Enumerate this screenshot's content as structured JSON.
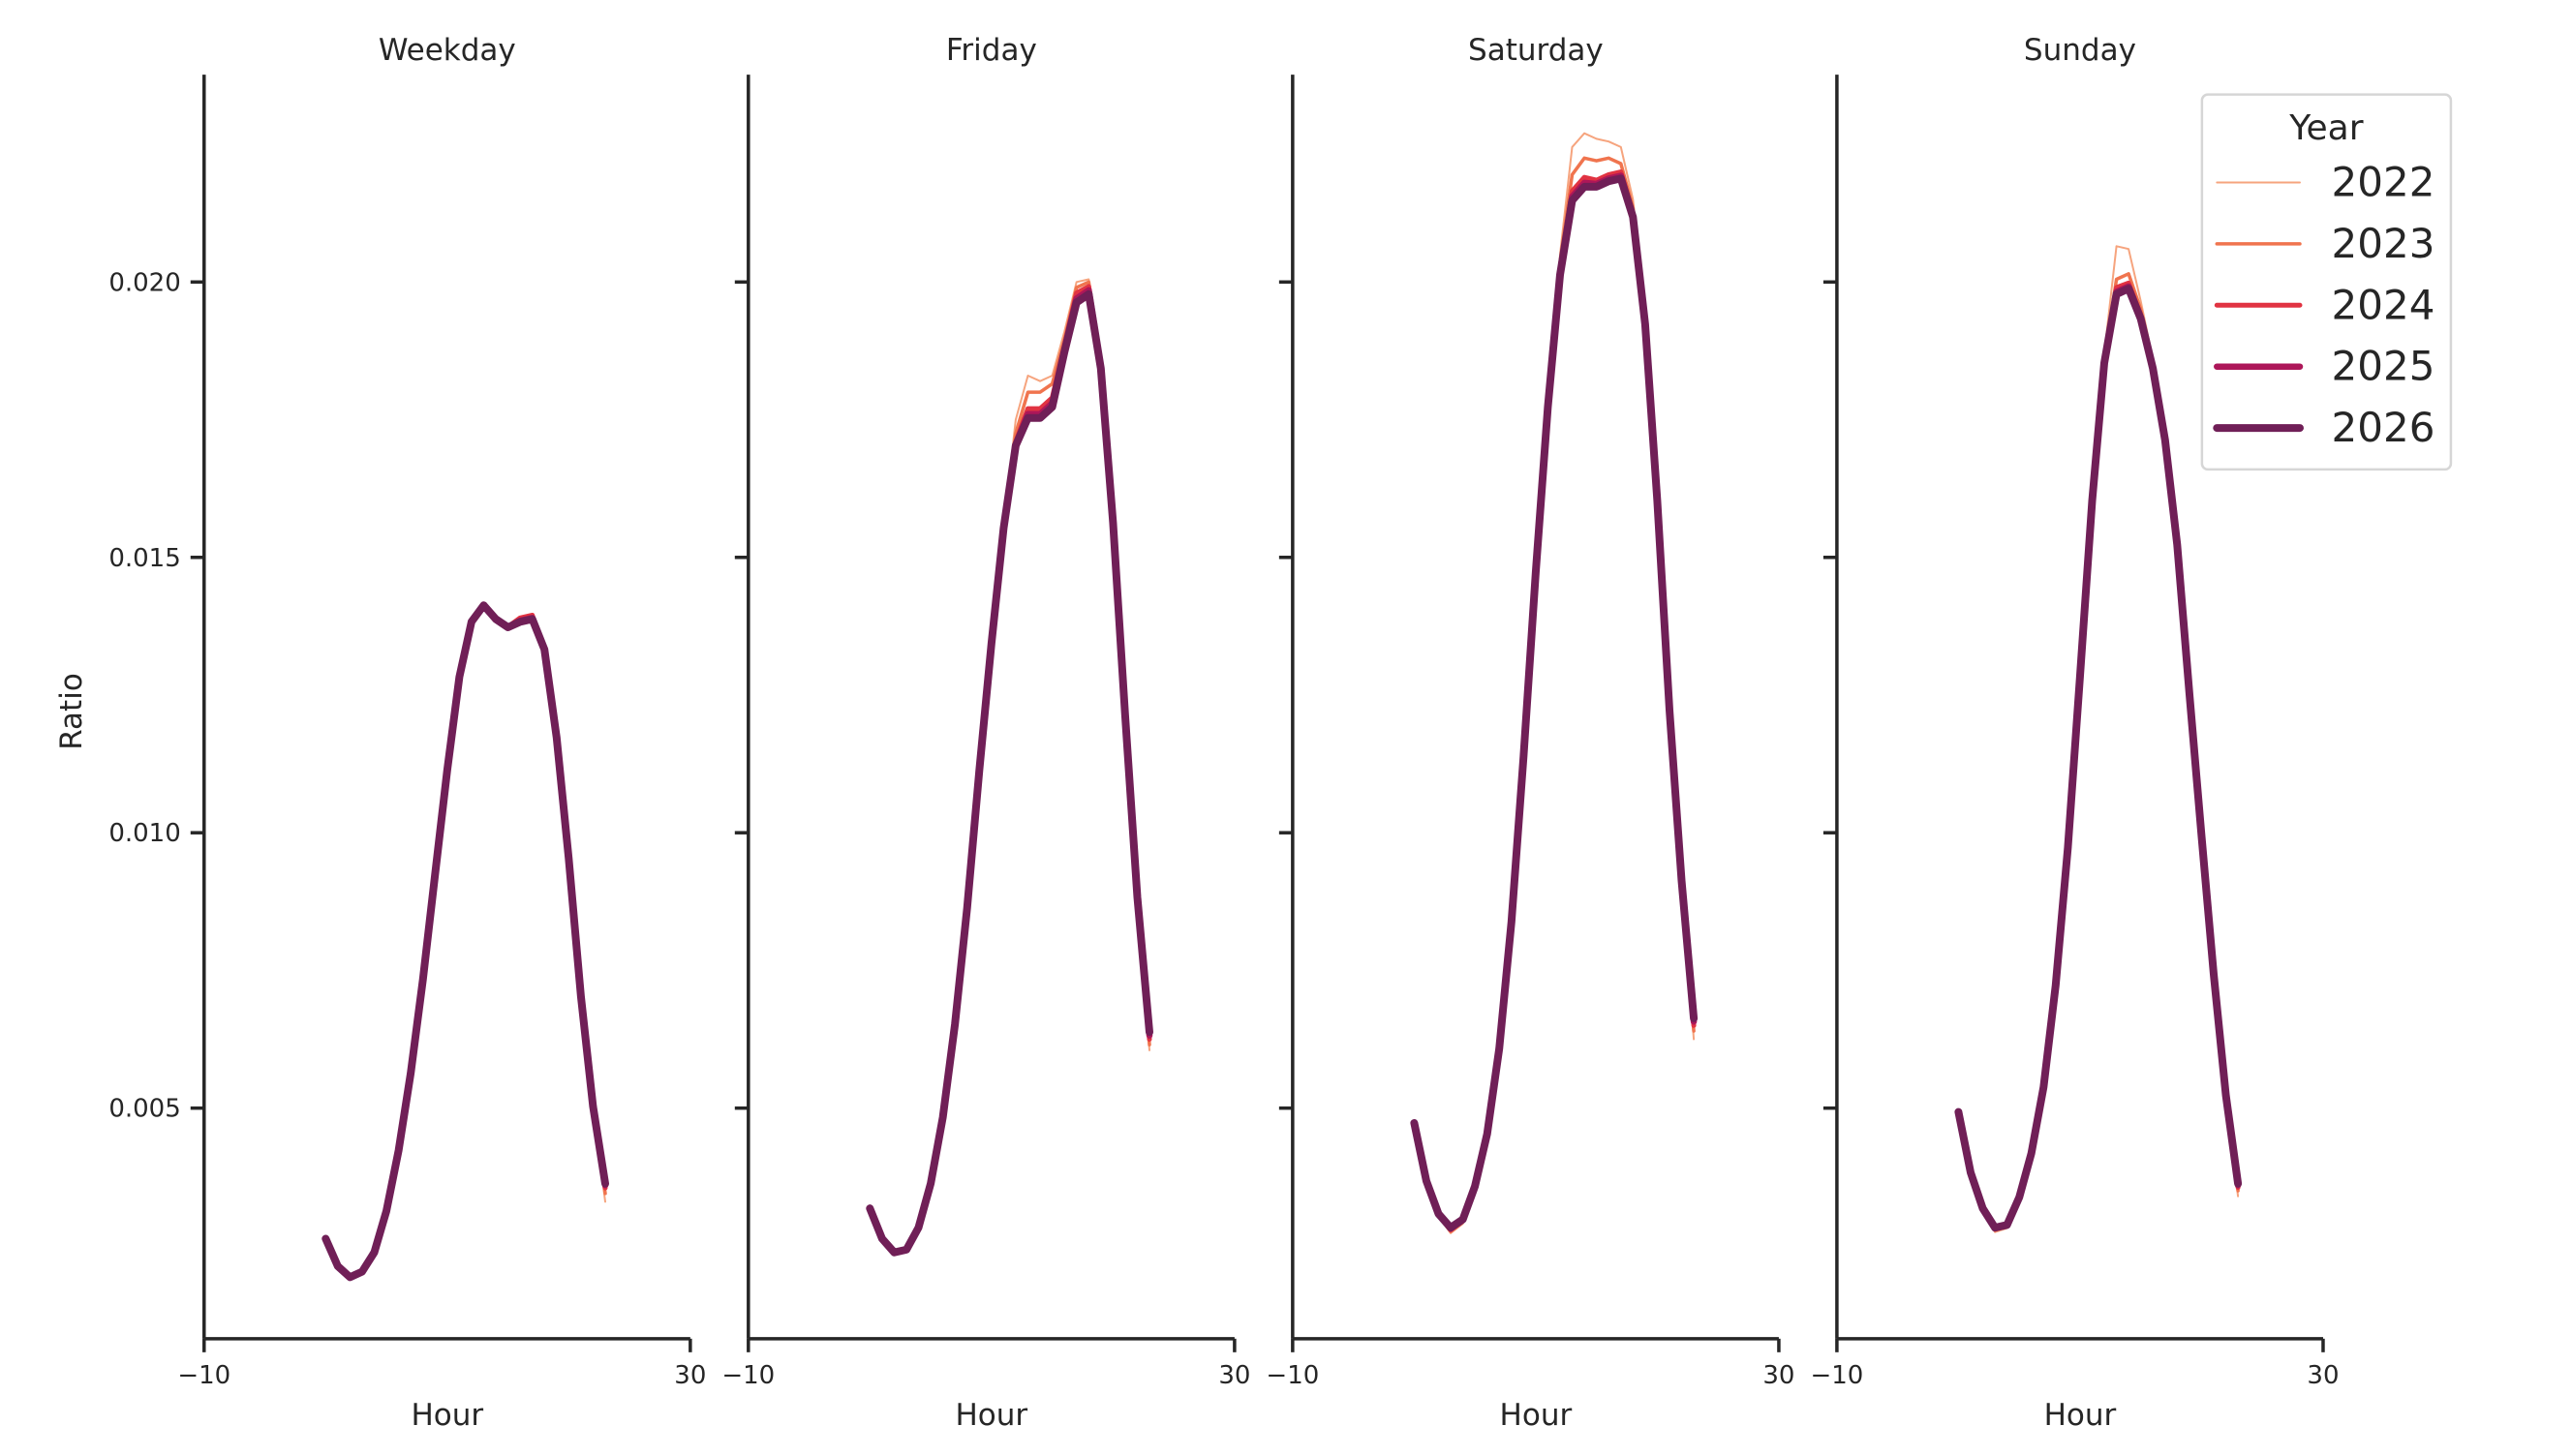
{
  "figure": {
    "ylabel": "Ratio",
    "xlabel": "Hour",
    "legend_title": "Year"
  },
  "chart_data": {
    "type": "line",
    "layout": "facet-grid 1x4, shared y-axis",
    "xlabel": "Hour",
    "ylabel": "Ratio",
    "xlim": [
      -10,
      30
    ],
    "xticks": [
      -10,
      30
    ],
    "ylim": [
      0.0009,
      0.0238
    ],
    "yticks": [
      0.005,
      0.01,
      0.015,
      0.02
    ],
    "ytick_labels": [
      "0.005",
      "0.010",
      "0.015",
      "0.020"
    ],
    "grid": false,
    "legend": {
      "title": "Year",
      "position": "upper right (inside Sunday panel)",
      "entries": [
        {
          "label": "2022",
          "color": "#f6a47e",
          "width": 2
        },
        {
          "label": "2023",
          "color": "#f0744e",
          "width": 3.5
        },
        {
          "label": "2024",
          "color": "#e13342",
          "width": 5
        },
        {
          "label": "2025",
          "color": "#ad1759",
          "width": 6.5
        },
        {
          "label": "2026",
          "color": "#701f57",
          "width": 8
        }
      ]
    },
    "x": [
      0,
      1,
      2,
      3,
      4,
      5,
      6,
      7,
      8,
      9,
      10,
      11,
      12,
      13,
      14,
      15,
      16,
      17,
      18,
      19,
      20,
      21,
      22,
      23
    ],
    "panels": [
      {
        "title": "Weekday",
        "series": [
          {
            "name": "2022",
            "values": [
              0.00263,
              0.00209,
              0.00188,
              0.002,
              0.00236,
              0.00312,
              0.00423,
              0.00563,
              0.00733,
              0.00923,
              0.01113,
              0.01283,
              0.01383,
              0.01415,
              0.0139,
              0.01375,
              0.0139,
              0.01395,
              0.01333,
              0.01173,
              0.00953,
              0.00703,
              0.00503,
              0.0033
            ]
          },
          {
            "name": "2023",
            "values": [
              0.00263,
              0.00211,
              0.0019,
              0.00201,
              0.00237,
              0.00312,
              0.00423,
              0.00563,
              0.00733,
              0.00923,
              0.01113,
              0.01283,
              0.01383,
              0.01414,
              0.01389,
              0.01374,
              0.01388,
              0.01393,
              0.01333,
              0.01173,
              0.00953,
              0.00703,
              0.00503,
              0.00345
            ]
          },
          {
            "name": "2024",
            "values": [
              0.00263,
              0.00212,
              0.00192,
              0.00202,
              0.00238,
              0.00313,
              0.00423,
              0.00563,
              0.00733,
              0.00923,
              0.01113,
              0.01283,
              0.01383,
              0.01413,
              0.01389,
              0.01374,
              0.0139,
              0.01395,
              0.01333,
              0.01173,
              0.00953,
              0.00703,
              0.00503,
              0.00355
            ]
          },
          {
            "name": "2025",
            "values": [
              0.00263,
              0.00213,
              0.00193,
              0.00203,
              0.00238,
              0.00313,
              0.00423,
              0.00563,
              0.00733,
              0.00923,
              0.01113,
              0.01283,
              0.01383,
              0.01413,
              0.01388,
              0.01373,
              0.01385,
              0.0139,
              0.01333,
              0.01173,
              0.00953,
              0.00703,
              0.00503,
              0.0036
            ]
          },
          {
            "name": "2026",
            "values": [
              0.00263,
              0.00213,
              0.00193,
              0.00203,
              0.00238,
              0.00313,
              0.00423,
              0.00563,
              0.00733,
              0.00923,
              0.01113,
              0.01283,
              0.01383,
              0.01413,
              0.01388,
              0.01373,
              0.01383,
              0.01388,
              0.01333,
              0.01173,
              0.00953,
              0.00703,
              0.00503,
              0.00363
            ]
          }
        ]
      },
      {
        "title": "Friday",
        "series": [
          {
            "name": "2022",
            "values": [
              0.00318,
              0.00263,
              0.00238,
              0.00243,
              0.00283,
              0.00363,
              0.00483,
              0.00653,
              0.00863,
              0.01113,
              0.01343,
              0.01553,
              0.0175,
              0.0183,
              0.0182,
              0.0183,
              0.0191,
              0.02,
              0.02005,
              0.0186,
              0.01563,
              0.01213,
              0.00883,
              0.00605
            ]
          },
          {
            "name": "2023",
            "values": [
              0.00318,
              0.00263,
              0.00238,
              0.00243,
              0.00283,
              0.00363,
              0.00483,
              0.00653,
              0.00863,
              0.01113,
              0.01343,
              0.01553,
              0.01725,
              0.018,
              0.018,
              0.01815,
              0.01895,
              0.0199,
              0.02,
              0.01855,
              0.01563,
              0.01213,
              0.00883,
              0.00615
            ]
          },
          {
            "name": "2024",
            "values": [
              0.00318,
              0.00263,
              0.00238,
              0.00243,
              0.00283,
              0.00363,
              0.00483,
              0.00653,
              0.00863,
              0.01113,
              0.01343,
              0.01553,
              0.0171,
              0.0177,
              0.0177,
              0.0179,
              0.01885,
              0.0198,
              0.01992,
              0.0185,
              0.01563,
              0.01213,
              0.00883,
              0.00625
            ]
          },
          {
            "name": "2025",
            "values": [
              0.00318,
              0.00263,
              0.00238,
              0.00243,
              0.00283,
              0.00363,
              0.00483,
              0.00653,
              0.00863,
              0.01113,
              0.01343,
              0.01553,
              0.01705,
              0.0176,
              0.0176,
              0.0178,
              0.01878,
              0.0197,
              0.01985,
              0.01846,
              0.01563,
              0.01213,
              0.00883,
              0.00632
            ]
          },
          {
            "name": "2026",
            "values": [
              0.00318,
              0.00263,
              0.00238,
              0.00243,
              0.00283,
              0.00363,
              0.00483,
              0.00653,
              0.00863,
              0.01113,
              0.01343,
              0.01553,
              0.01703,
              0.01753,
              0.01753,
              0.01773,
              0.01873,
              0.01963,
              0.01978,
              0.01843,
              0.01563,
              0.01213,
              0.00883,
              0.00638
            ]
          }
        ]
      },
      {
        "title": "Saturday",
        "series": [
          {
            "name": "2022",
            "values": [
              0.00473,
              0.00368,
              0.00303,
              0.00273,
              0.0029,
              0.00358,
              0.00453,
              0.00608,
              0.00838,
              0.01138,
              0.01473,
              0.01773,
              0.0205,
              0.02245,
              0.0227,
              0.0226,
              0.02255,
              0.02245,
              0.0215,
              0.0194,
              0.01603,
              0.01223,
              0.00913,
              0.00625
            ]
          },
          {
            "name": "2023",
            "values": [
              0.00473,
              0.00368,
              0.00305,
              0.00276,
              0.00293,
              0.00358,
              0.00453,
              0.00608,
              0.00838,
              0.01138,
              0.01473,
              0.01773,
              0.02035,
              0.02195,
              0.02225,
              0.0222,
              0.02225,
              0.02215,
              0.02135,
              0.0193,
              0.01603,
              0.01223,
              0.00913,
              0.0064
            ]
          },
          {
            "name": "2024",
            "values": [
              0.00473,
              0.00368,
              0.00306,
              0.00279,
              0.00295,
              0.00358,
              0.00453,
              0.00608,
              0.00838,
              0.01138,
              0.01473,
              0.01773,
              0.0202,
              0.02165,
              0.0219,
              0.02185,
              0.02195,
              0.022,
              0.02125,
              0.01926,
              0.01603,
              0.01223,
              0.00913,
              0.0065
            ]
          },
          {
            "name": "2025",
            "values": [
              0.00473,
              0.00368,
              0.00307,
              0.00281,
              0.00297,
              0.00358,
              0.00453,
              0.00608,
              0.00838,
              0.01138,
              0.01473,
              0.01773,
              0.02015,
              0.02155,
              0.0218,
              0.02178,
              0.02188,
              0.02193,
              0.0212,
              0.01924,
              0.01603,
              0.01223,
              0.00913,
              0.00657
            ]
          },
          {
            "name": "2026",
            "values": [
              0.00473,
              0.00368,
              0.00308,
              0.00283,
              0.00298,
              0.00358,
              0.00453,
              0.00608,
              0.00838,
              0.01138,
              0.01473,
              0.01773,
              0.02013,
              0.02148,
              0.02173,
              0.02173,
              0.02183,
              0.02188,
              0.02118,
              0.01923,
              0.01603,
              0.01223,
              0.00913,
              0.00663
            ]
          }
        ]
      },
      {
        "title": "Sunday",
        "series": [
          {
            "name": "2022",
            "values": [
              0.00493,
              0.00383,
              0.00315,
              0.00275,
              0.00282,
              0.00338,
              0.00418,
              0.00538,
              0.00723,
              0.00973,
              0.01283,
              0.01603,
              0.0187,
              0.02065,
              0.0206,
              0.01965,
              0.0186,
              0.01725,
              0.0153,
              0.01258,
              0.00993,
              0.00743,
              0.00523,
              0.0034
            ]
          },
          {
            "name": "2023",
            "values": [
              0.00493,
              0.00383,
              0.00316,
              0.00278,
              0.00285,
              0.00338,
              0.00418,
              0.00538,
              0.00723,
              0.00973,
              0.01283,
              0.01603,
              0.0186,
              0.02005,
              0.02015,
              0.0195,
              0.01852,
              0.0172,
              0.01527,
              0.01256,
              0.00993,
              0.00743,
              0.00523,
              0.0035
            ]
          },
          {
            "name": "2024",
            "values": [
              0.00493,
              0.00383,
              0.00317,
              0.0028,
              0.00286,
              0.00338,
              0.00418,
              0.00538,
              0.00723,
              0.00973,
              0.01283,
              0.01603,
              0.01856,
              0.0199,
              0.01998,
              0.0194,
              0.01847,
              0.01716,
              0.01525,
              0.01254,
              0.00993,
              0.00743,
              0.00523,
              0.00356
            ]
          },
          {
            "name": "2025",
            "values": [
              0.00493,
              0.00383,
              0.00318,
              0.00282,
              0.00287,
              0.00338,
              0.00418,
              0.00538,
              0.00723,
              0.00973,
              0.01283,
              0.01603,
              0.01854,
              0.01982,
              0.01992,
              0.01936,
              0.01845,
              0.01714,
              0.01524,
              0.01253,
              0.00993,
              0.00743,
              0.00523,
              0.0036
            ]
          },
          {
            "name": "2026",
            "values": [
              0.00493,
              0.00383,
              0.00318,
              0.00283,
              0.00288,
              0.00338,
              0.00418,
              0.00538,
              0.00723,
              0.00973,
              0.01283,
              0.01603,
              0.01853,
              0.01978,
              0.01988,
              0.01933,
              0.01843,
              0.01713,
              0.01523,
              0.01253,
              0.00993,
              0.00743,
              0.00523,
              0.00363
            ]
          }
        ]
      }
    ]
  }
}
